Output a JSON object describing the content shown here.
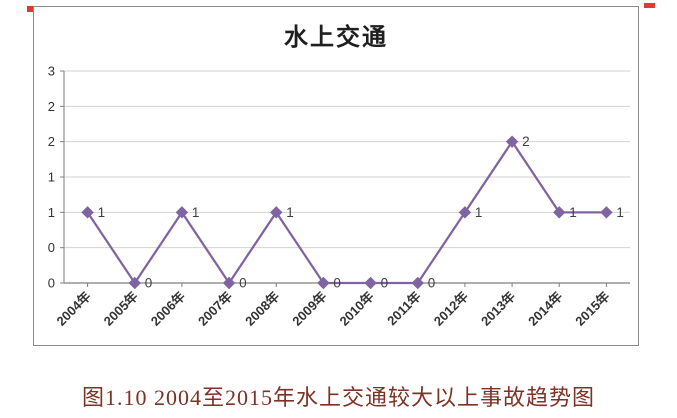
{
  "caption": "图1.10 2004至2015年水上交通较大以上事故趋势图",
  "chart_data": {
    "type": "line",
    "title": "水上交通",
    "categories": [
      "2004年",
      "2005年",
      "2006年",
      "2007年",
      "2008年",
      "2009年",
      "2010年",
      "2011年",
      "2012年",
      "2013年",
      "2014年",
      "2015年"
    ],
    "series": [
      {
        "name": "水上交通",
        "values": [
          1,
          0,
          1,
          0,
          1,
          0,
          0,
          0,
          1,
          2,
          1,
          1
        ]
      }
    ],
    "data_labels": [
      "1",
      "0",
      "1",
      "0",
      "1",
      "0",
      "0",
      "0",
      "1",
      "2",
      "1",
      "1"
    ],
    "xlabel": "",
    "ylabel": "",
    "ylim": [
      0,
      3
    ],
    "y_tick_interval": 0.5,
    "y_tick_labels_bottom_to_top": [
      "0",
      "0",
      "1",
      "1",
      "2",
      "2",
      "3"
    ],
    "grid": true,
    "legend_position": "none",
    "marker": "diamond",
    "line_color": "#8064A2",
    "gridline_color": "#d2d2d2",
    "axis_color": "#7f7f7f",
    "tick_label_color": "#333333",
    "data_label_color": "#404040"
  },
  "artifacts": {
    "corner_mark_color": "#e03a2e"
  }
}
